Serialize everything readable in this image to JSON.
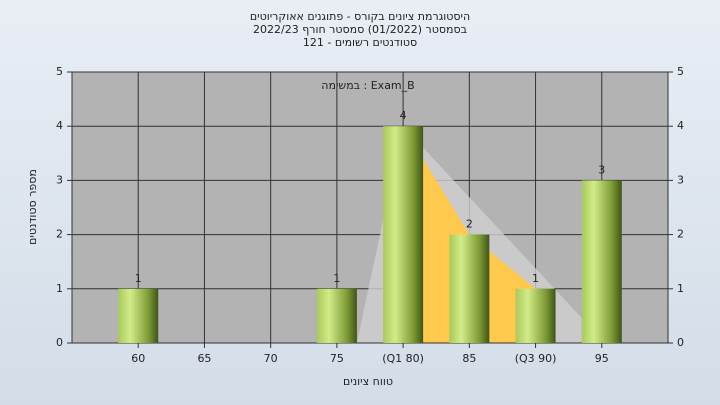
{
  "chart_data": {
    "type": "bar",
    "title": "היסטוגרמת ציונים בקורס - פתוגנים אאוקריוטים",
    "subtitle": "בסמסטר (01/2022) סמסטר חורף 2022/23",
    "subtitle2": "סטודנטים רשומים - 121",
    "annotation": "Exam_B : במשימה",
    "x_label": "טווח ציונים",
    "y_label": "מספר סטודנטים",
    "categories": [
      "60",
      "65",
      "70",
      "75",
      "(Q1 80)",
      "85",
      "(Q3 90)",
      "95"
    ],
    "values": [
      1,
      0,
      0,
      1,
      4,
      2,
      1,
      3
    ],
    "color": "#9cbf45",
    "ylim": [
      0,
      5
    ],
    "yticks": [
      0,
      1,
      2,
      3,
      4,
      5
    ],
    "y2lim": [
      0,
      5
    ],
    "y2ticks": [
      0,
      1,
      2,
      3,
      4,
      5
    ],
    "grid": true
  }
}
